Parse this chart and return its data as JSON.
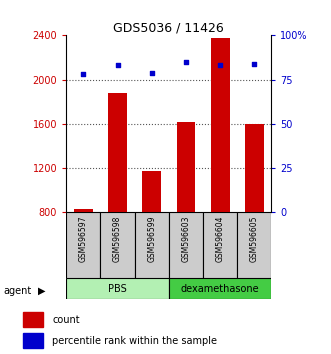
{
  "title": "GDS5036 / 11426",
  "samples": [
    "GSM596597",
    "GSM596598",
    "GSM596599",
    "GSM596603",
    "GSM596604",
    "GSM596605"
  ],
  "counts": [
    830,
    1880,
    1170,
    1620,
    2380,
    1600
  ],
  "percentiles": [
    78,
    83,
    79,
    85,
    83,
    84
  ],
  "groups": [
    {
      "label": "PBS",
      "indices": [
        0,
        1,
        2
      ],
      "color": "#b3f0b3"
    },
    {
      "label": "dexamethasone",
      "indices": [
        3,
        4,
        5
      ],
      "color": "#44cc44"
    }
  ],
  "left_ylim": [
    800,
    2400
  ],
  "left_yticks": [
    800,
    1200,
    1600,
    2000,
    2400
  ],
  "right_ylim": [
    0,
    100
  ],
  "right_yticks": [
    0,
    25,
    50,
    75,
    100
  ],
  "right_yticklabels": [
    "0",
    "25",
    "50",
    "75",
    "100%"
  ],
  "bar_color": "#cc0000",
  "dot_color": "#0000cc",
  "bar_width": 0.55,
  "label_count": "count",
  "label_percentile": "percentile rank within the sample",
  "agent_label": "agent",
  "grid_color": "#555555",
  "left_tick_color": "#cc0000",
  "right_tick_color": "#0000cc",
  "sample_box_color": "#cccccc",
  "gridline_values": [
    1200,
    1600,
    2000
  ]
}
